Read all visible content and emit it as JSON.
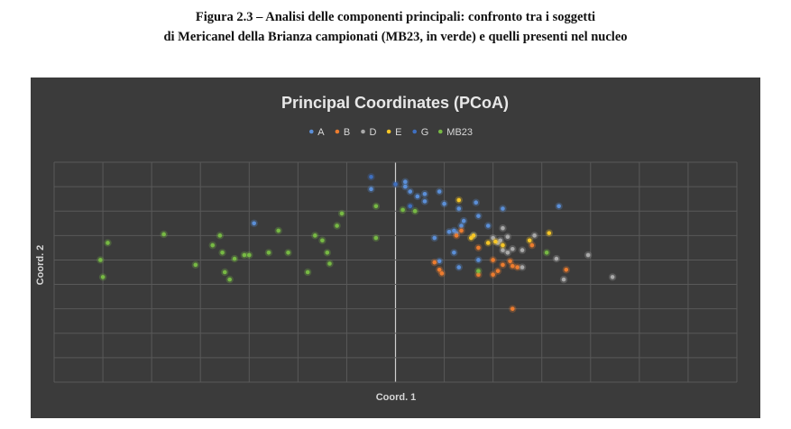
{
  "figure": {
    "caption_line1": "Figura 2.3 – Analisi delle componenti principali: confronto tra i soggetti",
    "caption_line2": "di Mericanel della Brianza campionati (MB23, in verde) e quelli presenti nel nucleo"
  },
  "chart_data": {
    "type": "scatter",
    "title": "Principal Coordinates (PCoA)",
    "xlabel": "Coord. 1",
    "ylabel": "Coord. 2",
    "xlim": [
      -0.7,
      0.7
    ],
    "ylim": [
      -0.5,
      0.4
    ],
    "grid": true,
    "legend": "top",
    "series": [
      {
        "name": "A",
        "color": "#5b8fd8",
        "points": [
          [
            -0.05,
            0.29
          ],
          [
            0.02,
            0.3
          ],
          [
            0.02,
            0.32
          ],
          [
            0.03,
            0.28
          ],
          [
            0.045,
            0.26
          ],
          [
            0.06,
            0.24
          ],
          [
            0.06,
            0.27
          ],
          [
            0.09,
            0.28
          ],
          [
            0.1,
            0.23
          ],
          [
            0.13,
            0.21
          ],
          [
            0.135,
            0.14
          ],
          [
            0.14,
            0.16
          ],
          [
            0.17,
            0.18
          ],
          [
            0.165,
            0.235
          ],
          [
            0.12,
            0.12
          ],
          [
            0.125,
            0.11
          ],
          [
            0.11,
            0.115
          ],
          [
            0.19,
            0.14
          ],
          [
            0.22,
            0.21
          ],
          [
            -0.29,
            0.15
          ],
          [
            0.335,
            0.22
          ],
          [
            0.08,
            0.09
          ],
          [
            0.12,
            0.03
          ],
          [
            0.17,
            0.0
          ],
          [
            0.13,
            -0.03
          ],
          [
            0.16,
            0.1
          ],
          [
            0.09,
            -0.005
          ]
        ]
      },
      {
        "name": "B",
        "color": "#ec7c2f",
        "points": [
          [
            0.08,
            -0.01
          ],
          [
            0.09,
            -0.04
          ],
          [
            0.095,
            -0.055
          ],
          [
            0.125,
            0.1
          ],
          [
            0.135,
            0.12
          ],
          [
            0.17,
            0.05
          ],
          [
            0.2,
            0.0
          ],
          [
            0.2,
            -0.06
          ],
          [
            0.21,
            -0.045
          ],
          [
            0.22,
            -0.02
          ],
          [
            0.24,
            -0.025
          ],
          [
            0.235,
            -0.005
          ],
          [
            0.25,
            -0.03
          ],
          [
            0.28,
            0.06
          ],
          [
            0.35,
            -0.04
          ],
          [
            0.17,
            -0.06
          ],
          [
            0.24,
            -0.2
          ]
        ]
      },
      {
        "name": "D",
        "color": "#a9a9a9",
        "points": [
          [
            0.2,
            0.09
          ],
          [
            0.21,
            0.07
          ],
          [
            0.215,
            0.08
          ],
          [
            0.22,
            0.04
          ],
          [
            0.23,
            0.03
          ],
          [
            0.24,
            0.045
          ],
          [
            0.26,
            0.04
          ],
          [
            0.285,
            0.1
          ],
          [
            0.22,
            0.13
          ],
          [
            0.23,
            0.095
          ],
          [
            0.33,
            0.005
          ],
          [
            0.345,
            -0.08
          ],
          [
            0.395,
            0.02
          ],
          [
            0.445,
            -0.07
          ],
          [
            0.26,
            -0.03
          ]
        ]
      },
      {
        "name": "E",
        "color": "#f6c626",
        "points": [
          [
            0.13,
            0.245
          ],
          [
            0.155,
            0.09
          ],
          [
            0.16,
            0.1
          ],
          [
            0.19,
            0.07
          ],
          [
            0.205,
            0.075
          ],
          [
            0.22,
            0.06
          ],
          [
            0.275,
            0.08
          ],
          [
            0.315,
            0.11
          ]
        ]
      },
      {
        "name": "G",
        "color": "#3f6fbf",
        "points": [
          [
            0.03,
            0.22
          ],
          [
            0.0,
            0.31
          ],
          [
            -0.05,
            0.34
          ]
        ]
      },
      {
        "name": "MB23",
        "color": "#77b944",
        "points": [
          [
            -0.59,
            0.07
          ],
          [
            -0.6,
            -0.07
          ],
          [
            -0.605,
            0.0
          ],
          [
            -0.475,
            0.105
          ],
          [
            -0.41,
            -0.02
          ],
          [
            -0.375,
            0.06
          ],
          [
            -0.36,
            0.1
          ],
          [
            -0.355,
            0.03
          ],
          [
            -0.35,
            -0.05
          ],
          [
            -0.34,
            -0.08
          ],
          [
            -0.33,
            0.005
          ],
          [
            -0.31,
            0.02
          ],
          [
            -0.3,
            0.02
          ],
          [
            -0.26,
            0.03
          ],
          [
            -0.24,
            0.12
          ],
          [
            -0.22,
            0.03
          ],
          [
            -0.18,
            -0.05
          ],
          [
            -0.165,
            0.1
          ],
          [
            -0.15,
            0.08
          ],
          [
            -0.14,
            0.03
          ],
          [
            -0.135,
            -0.015
          ],
          [
            -0.12,
            0.14
          ],
          [
            -0.11,
            0.19
          ],
          [
            -0.04,
            0.09
          ],
          [
            -0.04,
            0.22
          ],
          [
            0.04,
            0.2
          ],
          [
            0.015,
            0.205
          ],
          [
            0.17,
            -0.045
          ],
          [
            0.31,
            0.03
          ]
        ]
      }
    ]
  }
}
